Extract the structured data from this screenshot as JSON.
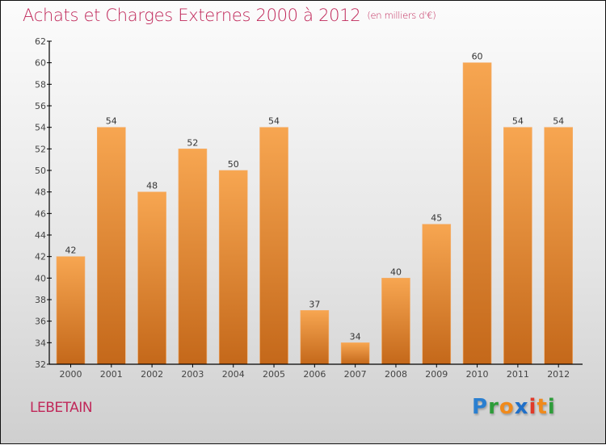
{
  "header": {
    "title": "Achats et Charges Externes 2000 à 2012",
    "subtitle": "(en milliers d'€)"
  },
  "footer": {
    "town": "LEBETAIN",
    "logo_letters": [
      {
        "char": "P",
        "color": "#2a7fd0"
      },
      {
        "char": "r",
        "color": "#2e9c3a"
      },
      {
        "char": "o",
        "color": "#f08a1c"
      },
      {
        "char": "x",
        "color": "#1f6fc8"
      },
      {
        "char": "i",
        "color": "#e03a2a"
      },
      {
        "char": "t",
        "color": "#f08a1c"
      },
      {
        "char": "i",
        "color": "#2e9c3a"
      }
    ]
  },
  "colors": {
    "title": "#c0285a",
    "bar_top": "#f7a651",
    "bar_bottom": "#c4681a"
  },
  "chart_data": {
    "type": "bar",
    "title": "Achats et Charges Externes 2000 à 2012 (en milliers d'€)",
    "xlabel": "",
    "ylabel": "",
    "categories": [
      "2000",
      "2001",
      "2002",
      "2003",
      "2004",
      "2005",
      "2006",
      "2007",
      "2008",
      "2009",
      "2010",
      "2011",
      "2012"
    ],
    "values": [
      42,
      54,
      48,
      52,
      50,
      54,
      37,
      34,
      40,
      45,
      60,
      54,
      54
    ],
    "ylim": [
      32,
      62
    ],
    "yticks": [
      32,
      34,
      36,
      38,
      40,
      42,
      44,
      46,
      48,
      50,
      52,
      54,
      56,
      58,
      60,
      62
    ],
    "grid": false,
    "legend": "none"
  }
}
